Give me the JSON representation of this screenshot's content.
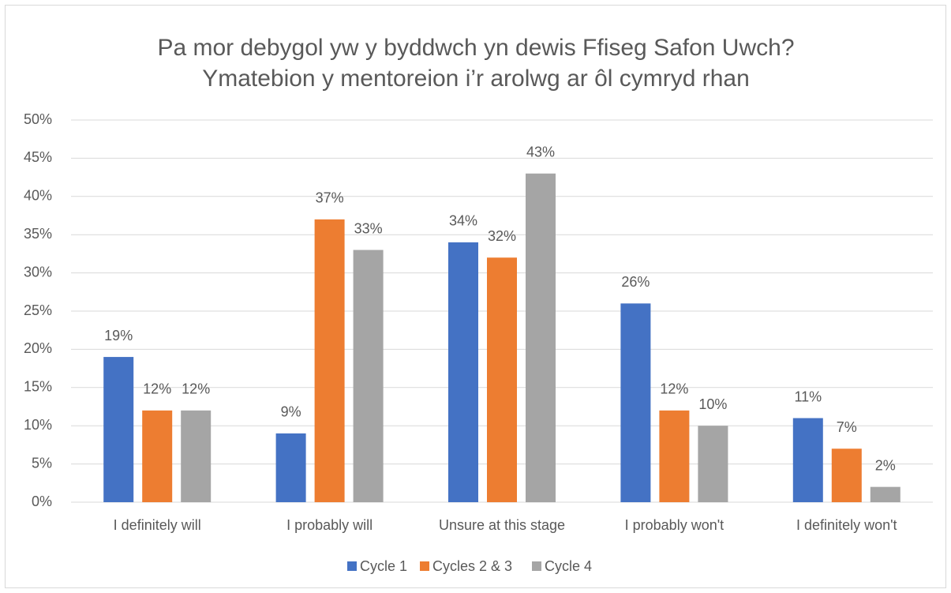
{
  "chart_data": {
    "type": "bar",
    "title": [
      "Pa mor debygol yw y byddwch yn dewis Ffiseg Safon Uwch?",
      "Ymatebion y mentoreion i’r arolwg ar ôl cymryd rhan"
    ],
    "categories": [
      "I definitely will",
      "I probably will",
      "Unsure at this stage",
      "I probably won't",
      "I definitely won't"
    ],
    "series": [
      {
        "name": "Cycle 1",
        "color": "#4472c4",
        "values": [
          19,
          9,
          34,
          26,
          11
        ],
        "value_labels": [
          "19%",
          "9%",
          "34%",
          "26%",
          "11%"
        ]
      },
      {
        "name": "Cycles 2 & 3",
        "color": "#ed7d31",
        "values": [
          12,
          37,
          32,
          12,
          7
        ],
        "value_labels": [
          "12%",
          "37%",
          "32%",
          "12%",
          "7%"
        ]
      },
      {
        "name": "Cycle 4",
        "color": "#a5a5a5",
        "values": [
          12,
          33,
          43,
          10,
          2
        ],
        "value_labels": [
          "12%",
          "33%",
          "43%",
          "10%",
          "2%"
        ]
      }
    ],
    "ylim": [
      0,
      50
    ],
    "yticks": [
      {
        "value": 0,
        "label": "0%"
      },
      {
        "value": 5,
        "label": "5%"
      },
      {
        "value": 10,
        "label": "10%"
      },
      {
        "value": 15,
        "label": "15%"
      },
      {
        "value": 20,
        "label": "20%"
      },
      {
        "value": 25,
        "label": "25%"
      },
      {
        "value": 30,
        "label": "30%"
      },
      {
        "value": 35,
        "label": "35%"
      },
      {
        "value": 40,
        "label": "40%"
      },
      {
        "value": 45,
        "label": "45%"
      },
      {
        "value": 50,
        "label": "50%"
      }
    ],
    "grid": true,
    "legend": "bottom"
  }
}
